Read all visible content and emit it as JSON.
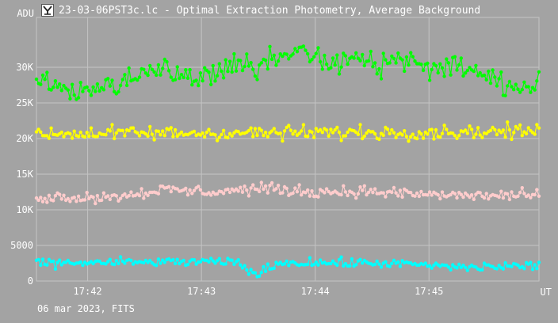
{
  "window": {
    "title": "23-03-06PST3c.lc - Optimal Extraction Photometry, Average Background",
    "icon": "app-logo-icon"
  },
  "footer": {
    "caption": "06 mar 2023, FITS"
  },
  "colors": {
    "background": "#a3a3a3",
    "plot_area": "#a3a3a3",
    "grid": "#c4c4c4",
    "axis_text": "#ffffff"
  },
  "chart_data": {
    "type": "scatter",
    "style": "line-with-markers",
    "ylabel": "ADU",
    "xlabel": "UT",
    "xlim": [
      "17:41:33",
      "17:45:58"
    ],
    "ylim": [
      0,
      37000
    ],
    "yticks": [
      0,
      5000,
      10000,
      15000,
      20000,
      25000,
      30000
    ],
    "ytick_labels": [
      "0",
      "5000",
      "10K",
      "15K",
      "20K",
      "25K",
      "30K"
    ],
    "xticks": [
      "17:42",
      "17:43",
      "17:44",
      "17:45"
    ],
    "grid": true,
    "legend": "none",
    "series": [
      {
        "color": "#00ff00",
        "x_start": "17:41:33",
        "x_end": "17:45:58",
        "n_points": 240,
        "anchors": [
          [
            0,
            28000
          ],
          [
            0.08,
            26500
          ],
          [
            0.14,
            27500
          ],
          [
            0.2,
            28000
          ],
          [
            0.24,
            30000
          ],
          [
            0.28,
            29000
          ],
          [
            0.32,
            28500
          ],
          [
            0.36,
            29500
          ],
          [
            0.4,
            30500
          ],
          [
            0.44,
            29500
          ],
          [
            0.48,
            31500
          ],
          [
            0.52,
            32500
          ],
          [
            0.56,
            31000
          ],
          [
            0.6,
            30500
          ],
          [
            0.64,
            31500
          ],
          [
            0.68,
            30000
          ],
          [
            0.72,
            31800
          ],
          [
            0.76,
            30500
          ],
          [
            0.8,
            29500
          ],
          [
            0.84,
            30500
          ],
          [
            0.88,
            29000
          ],
          [
            0.92,
            28000
          ],
          [
            0.96,
            27500
          ],
          [
            1,
            27500
          ]
        ],
        "jitter": 1500,
        "min": 25500,
        "max": 34300
      },
      {
        "color": "#ffff00",
        "x_start": "17:41:33",
        "x_end": "17:45:58",
        "n_points": 240,
        "anchors": [
          [
            0,
            20700
          ],
          [
            0.5,
            20800
          ],
          [
            1,
            21000
          ]
        ],
        "jitter": 900,
        "min": 18500,
        "max": 23400
      },
      {
        "color": "#ffcccc",
        "x_start": "17:41:33",
        "x_end": "17:45:58",
        "n_points": 240,
        "anchors": [
          [
            0,
            11800
          ],
          [
            0.15,
            11800
          ],
          [
            0.25,
            12800
          ],
          [
            0.35,
            12500
          ],
          [
            0.45,
            13000
          ],
          [
            0.55,
            12500
          ],
          [
            0.65,
            12600
          ],
          [
            0.75,
            12200
          ],
          [
            0.85,
            12000
          ],
          [
            1,
            12000
          ]
        ],
        "jitter": 700,
        "min": 10400,
        "max": 14800
      },
      {
        "color": "#00ffff",
        "x_start": "17:41:33",
        "x_end": "17:45:58",
        "n_points": 240,
        "anchors": [
          [
            0,
            2500
          ],
          [
            0.3,
            2700
          ],
          [
            0.4,
            2600
          ],
          [
            0.44,
            800
          ],
          [
            0.48,
            2600
          ],
          [
            0.7,
            2500
          ],
          [
            0.85,
            1900
          ],
          [
            1,
            2200
          ]
        ],
        "jitter": 550,
        "min": 0,
        "max": 3600
      }
    ]
  }
}
